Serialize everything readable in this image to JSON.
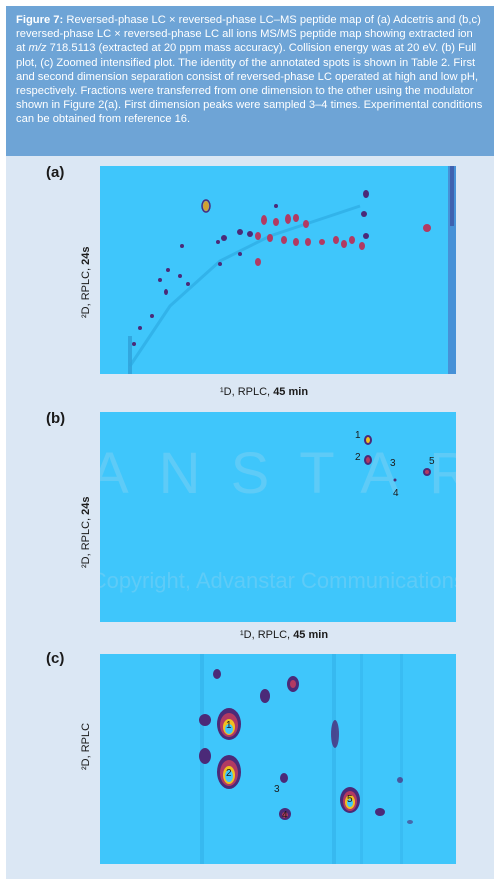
{
  "caption": {
    "figure_label": "Figure 7:",
    "t1": " Reversed-phase LC × reversed-phase LC–MS peptide map of (a) Adcetris and (b,c) reversed-phase LC × reversed-phase LC all ions MS/MS peptide map showing extracted ion at ",
    "mz": "m/z",
    "t2": " 718.5113 (extracted at 20 ppm mass accuracy). Collision energy was at 20 eV. (b) Full plot, (c) Zoomed intensified plot. The identity of the annotated spots is shown in Table 2. First and second dimension separation consist of reversed-phase LC operated at high and low pH, respectively. Fractions were transferred from one dimension to the other using the modulator shown in Figure 2(a). First dimension peaks were sampled 3–4 times. Experimental conditions can be obtained from reference 16."
  },
  "panels": {
    "a": {
      "label": "(a)",
      "ylabel_pre": "²D, RPLC, ",
      "ylabel_bold": "24s",
      "xlabel_pre": "¹D, RPLC, ",
      "xlabel_bold": "45 min"
    },
    "b": {
      "label": "(b)",
      "ylabel_pre": "²D, RPLC, ",
      "ylabel_bold": "24s",
      "xlabel_pre": "¹D, RPLC, ",
      "xlabel_bold": "45 min",
      "annotations": [
        "1",
        "2",
        "3",
        "4",
        "5"
      ]
    },
    "c": {
      "label": "(c)",
      "ylabel_pre": "²D, RPLC",
      "annotations": [
        "1",
        "2",
        "3",
        "4",
        "5"
      ]
    }
  },
  "watermark": {
    "big": "ANSTAR",
    "line": "ed. Copyright, Advanstar Communications Inc"
  },
  "colors": {
    "plot_bg": "#3fc6fb",
    "spot_dark": "#4b2a78",
    "spot_mid": "#b23a62",
    "spot_hot": "#f0c020",
    "caption_bg": "#6ea4d6"
  }
}
